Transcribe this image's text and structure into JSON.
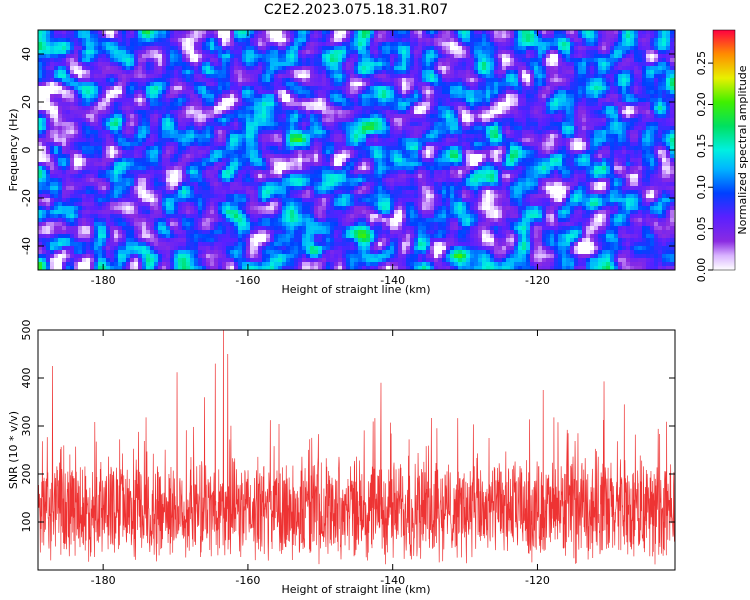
{
  "title": "C2E2.2023.075.18.31.R07",
  "chart_data": [
    {
      "type": "heatmap",
      "xlabel": "Height of straight line (km)",
      "ylabel": "Frequency (Hz)",
      "xlim": [
        -189,
        -101
      ],
      "ylim": [
        -50,
        50
      ],
      "xticks": [
        "-180",
        "-160",
        "-140",
        "-120"
      ],
      "xtick_values": [
        -180,
        -160,
        -140,
        -120
      ],
      "yticks": [
        "-40",
        "-20",
        "0",
        "20",
        "40"
      ],
      "ytick_values": [
        -40,
        -20,
        0,
        20,
        40
      ],
      "colorbar": {
        "label": "Normalized spectral amplitude",
        "range": [
          0.0,
          0.29
        ],
        "ticks": [
          "0.00",
          "0.05",
          "0.10",
          "0.15",
          "0.20",
          "0.25"
        ],
        "tick_values": [
          0.0,
          0.05,
          0.1,
          0.15,
          0.2,
          0.25
        ],
        "colormap": "rainbow (white-violet-blue-cyan-green-yellow-red)"
      },
      "values_description": "noise-like field with mean normalized amplitude about 0.03-0.05 across all heights and frequencies",
      "hotspots": [
        {
          "x": -186.5,
          "y": 0,
          "value": 0.13
        },
        {
          "x": -163,
          "y": -10,
          "value": 0.17
        },
        {
          "x": -124,
          "y": -3,
          "value": 0.1
        },
        {
          "x": -142,
          "y": -32,
          "value": 0.09
        }
      ],
      "grid": false
    },
    {
      "type": "line",
      "xlabel": "Height of straight line (km)",
      "ylabel": "SNR (10 * v/v)",
      "xlim": [
        -189,
        -101
      ],
      "ylim": [
        0,
        500
      ],
      "xticks": [
        "-180",
        "-160",
        "-140",
        "-120"
      ],
      "xtick_values": [
        -180,
        -160,
        -140,
        -120
      ],
      "yticks": [
        "100",
        "200",
        "300",
        "400",
        "500"
      ],
      "ytick_values": [
        100,
        200,
        300,
        400,
        500
      ],
      "series": [
        {
          "color": "#ee3333",
          "baseline_mean": 125,
          "typical_range": [
            20,
            300
          ],
          "peaks": [
            {
              "x": -187,
              "y": 425
            },
            {
              "x": -169.8,
              "y": 412
            },
            {
              "x": -166,
              "y": 360
            },
            {
              "x": -164.5,
              "y": 430
            },
            {
              "x": -163.4,
              "y": 500
            },
            {
              "x": -162.8,
              "y": 450
            },
            {
              "x": -141.6,
              "y": 390
            },
            {
              "x": -119.2,
              "y": 375
            },
            {
              "x": -110.8,
              "y": 393
            },
            {
              "x": -108,
              "y": 345
            }
          ]
        }
      ],
      "grid": false
    }
  ]
}
